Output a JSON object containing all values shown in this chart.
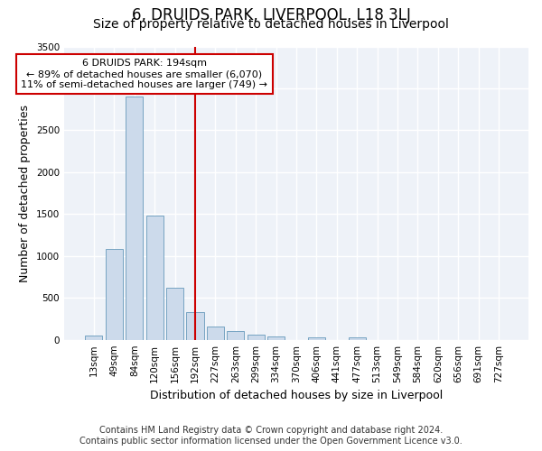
{
  "title": "6, DRUIDS PARK, LIVERPOOL, L18 3LJ",
  "subtitle": "Size of property relative to detached houses in Liverpool",
  "xlabel": "Distribution of detached houses by size in Liverpool",
  "ylabel": "Number of detached properties",
  "categories": [
    "13sqm",
    "49sqm",
    "84sqm",
    "120sqm",
    "156sqm",
    "192sqm",
    "227sqm",
    "263sqm",
    "299sqm",
    "334sqm",
    "370sqm",
    "406sqm",
    "441sqm",
    "477sqm",
    "513sqm",
    "549sqm",
    "584sqm",
    "620sqm",
    "656sqm",
    "691sqm",
    "727sqm"
  ],
  "values": [
    50,
    1080,
    2900,
    1480,
    620,
    330,
    160,
    100,
    60,
    40,
    0,
    30,
    0,
    25,
    0,
    0,
    0,
    0,
    0,
    0,
    0
  ],
  "bar_color": "#ccdaeb",
  "bar_edge_color": "#6699bb",
  "vline_index": 5,
  "vline_color": "#cc0000",
  "annotation_text": "6 DRUIDS PARK: 194sqm\n← 89% of detached houses are smaller (6,070)\n11% of semi-detached houses are larger (749) →",
  "annotation_box_facecolor": "#ffffff",
  "annotation_box_edgecolor": "#cc0000",
  "ylim": [
    0,
    3500
  ],
  "yticks": [
    0,
    500,
    1000,
    1500,
    2000,
    2500,
    3000,
    3500
  ],
  "bg_color": "#ffffff",
  "plot_bg_color": "#eef2f8",
  "grid_color": "#ffffff",
  "title_fontsize": 12,
  "subtitle_fontsize": 10,
  "axis_label_fontsize": 9,
  "tick_fontsize": 7.5,
  "annotation_fontsize": 8,
  "footer_fontsize": 7,
  "footer_line1": "Contains HM Land Registry data © Crown copyright and database right 2024.",
  "footer_line2": "Contains public sector information licensed under the Open Government Licence v3.0."
}
